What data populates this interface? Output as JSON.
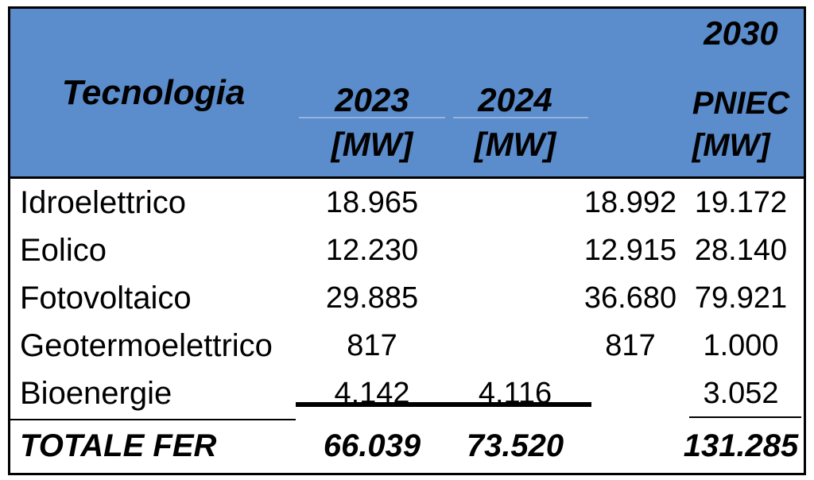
{
  "colors": {
    "header_bg": "#5B8CCB",
    "line_faint": "rgba(255,255,255,0.35)",
    "border": "#000000",
    "text": "#000000"
  },
  "table": {
    "header": {
      "tecnologia": "Tecnologia",
      "y2023": {
        "line1": "2023",
        "line2": "[MW]"
      },
      "y2024": {
        "line1": "2024",
        "line2": "[MW]"
      },
      "y2030": {
        "line1": "2030",
        "line2": "PNIEC",
        "line3": "[MW]"
      }
    },
    "rows": [
      {
        "label": "Idroelettrico",
        "v2023": "18.965",
        "v2024": "18.992",
        "v2030": "19.172"
      },
      {
        "label": "Eolico",
        "v2023": "12.230",
        "v2024": "12.915",
        "v2030": "28.140"
      },
      {
        "label": "Fotovoltaico",
        "v2023": "29.885",
        "v2024": "36.680",
        "v2030": "79.921"
      },
      {
        "label": "Geotermoelettrico",
        "v2023": "817",
        "v2024": "817",
        "v2030": "1.000"
      },
      {
        "label": "Bioenergie",
        "v2023": "4.142",
        "v2024": "4.116",
        "v2030": "3.052"
      }
    ],
    "total": {
      "label": "TOTALE FER",
      "v2023": "66.039",
      "v2024": "73.520",
      "v2030": "131.285"
    }
  },
  "chart_data": {
    "type": "table",
    "columns": [
      "Tecnologia",
      "2023 [MW]",
      "2024 [MW]",
      "2030 PNIEC [MW]"
    ],
    "rows": [
      [
        "Idroelettrico",
        18965,
        18992,
        19172
      ],
      [
        "Eolico",
        12230,
        12915,
        28140
      ],
      [
        "Fotovoltaico",
        29885,
        36680,
        79921
      ],
      [
        "Geotermoelettrico",
        817,
        817,
        1000
      ],
      [
        "Bioenergie",
        4142,
        4116,
        3052
      ],
      [
        "TOTALE FER",
        66039,
        73520,
        131285
      ]
    ]
  }
}
